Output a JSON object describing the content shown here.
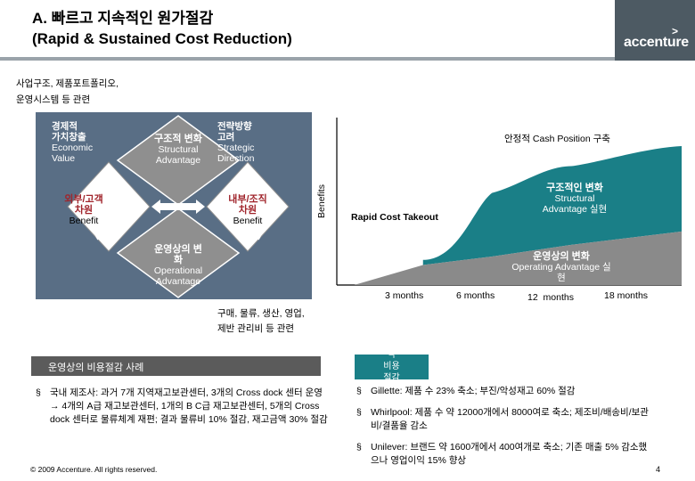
{
  "header": {
    "title_line1": "A. 빠르고 지속적인 원가절감",
    "title_line2": "(Rapid & Sustained Cost Reduction)",
    "logo_text": "accenture",
    "logo_mark": ">"
  },
  "top_left_note": [
    "사업구조, 제품포트폴리오,",
    "운영시스템 등 관련"
  ],
  "bottom_mid_note": [
    "구매, 물류, 생산, 영업,",
    "제반 관리비 등 관련"
  ],
  "diagram": {
    "corner_economic": [
      "경제적",
      "가치창출",
      "Economic",
      "Value"
    ],
    "top": [
      "구조적 변화",
      "Structural",
      "Advantage"
    ],
    "strategic": [
      "전략방향",
      "고려",
      "Strategic",
      "Direction"
    ],
    "left": [
      "외부/고객",
      "차원",
      "Benefit"
    ],
    "right": [
      "내부/조직",
      "차원",
      "Benefit"
    ],
    "bottom": [
      "운영상의 변",
      "화",
      "Operational",
      "Advantage"
    ]
  },
  "chart": {
    "ylabel": "Benefits",
    "top_note": "안정적 Cash Position 구축",
    "rapid_label": "Rapid Cost Takeout",
    "structural_label": [
      "구조적인 변화",
      "Structural",
      "Advantage 실현"
    ],
    "operating_label": [
      "운영상의 변화",
      "Operating Advantage 실",
      "현"
    ],
    "x_ticks": [
      "3 months",
      "6 months",
      "12  months",
      "18 months"
    ]
  },
  "chart_data": {
    "type": "area",
    "ylabel": "Benefits",
    "categories": [
      "3 months",
      "6 months",
      "12 months",
      "18 months"
    ],
    "series": [
      {
        "name": "운영상의 변화 Operating Advantage 실현",
        "values": [
          0.12,
          0.17,
          0.24,
          0.3
        ]
      },
      {
        "name": "구조적인 변화 Structural Advantage 실현",
        "values": [
          0.03,
          0.38,
          0.47,
          0.52
        ]
      }
    ]
  },
  "case_box": {
    "title": "운영상의 비용절감 사례",
    "teal_text": [
      "각",
      "비용",
      "절감"
    ],
    "left_bullets": [
      "국내 제조사: 과거 7개 지역재고보관센터, 3개의 Cross dock 센터 운영 → 4개의 A급 재고보관센터, 1개의 B C급 재고보관센터, 5개의 Cross dock 센터로 물류체계 재편; 결과 물류비 10% 절감, 재고금액 30% 절감"
    ],
    "right_bullets": [
      "Gillette: 제품 수 23% 축소; 부진/악성재고 60% 절감",
      "Whirlpool: 제품 수 약 12000개에서 8000여로 축소; 제조비/배송비/보관비/결품율 감소",
      "Unilever: 브랜드 약 1600개에서 400여개로 축소; 기존 매출 5% 감소했으나 영업이익 15% 향상"
    ],
    "bullet_symbol": "§"
  },
  "footer": {
    "copyright": "© 2009 Accenture. All rights reserved.",
    "page": "4"
  },
  "colors": {
    "diamond_bg": "#596e85",
    "diamond_gray": "#8f8f8f",
    "structural_teal": "#1a7f87",
    "operating_gray": "#8a8a8a",
    "title_rule": "#9aa3aa"
  }
}
